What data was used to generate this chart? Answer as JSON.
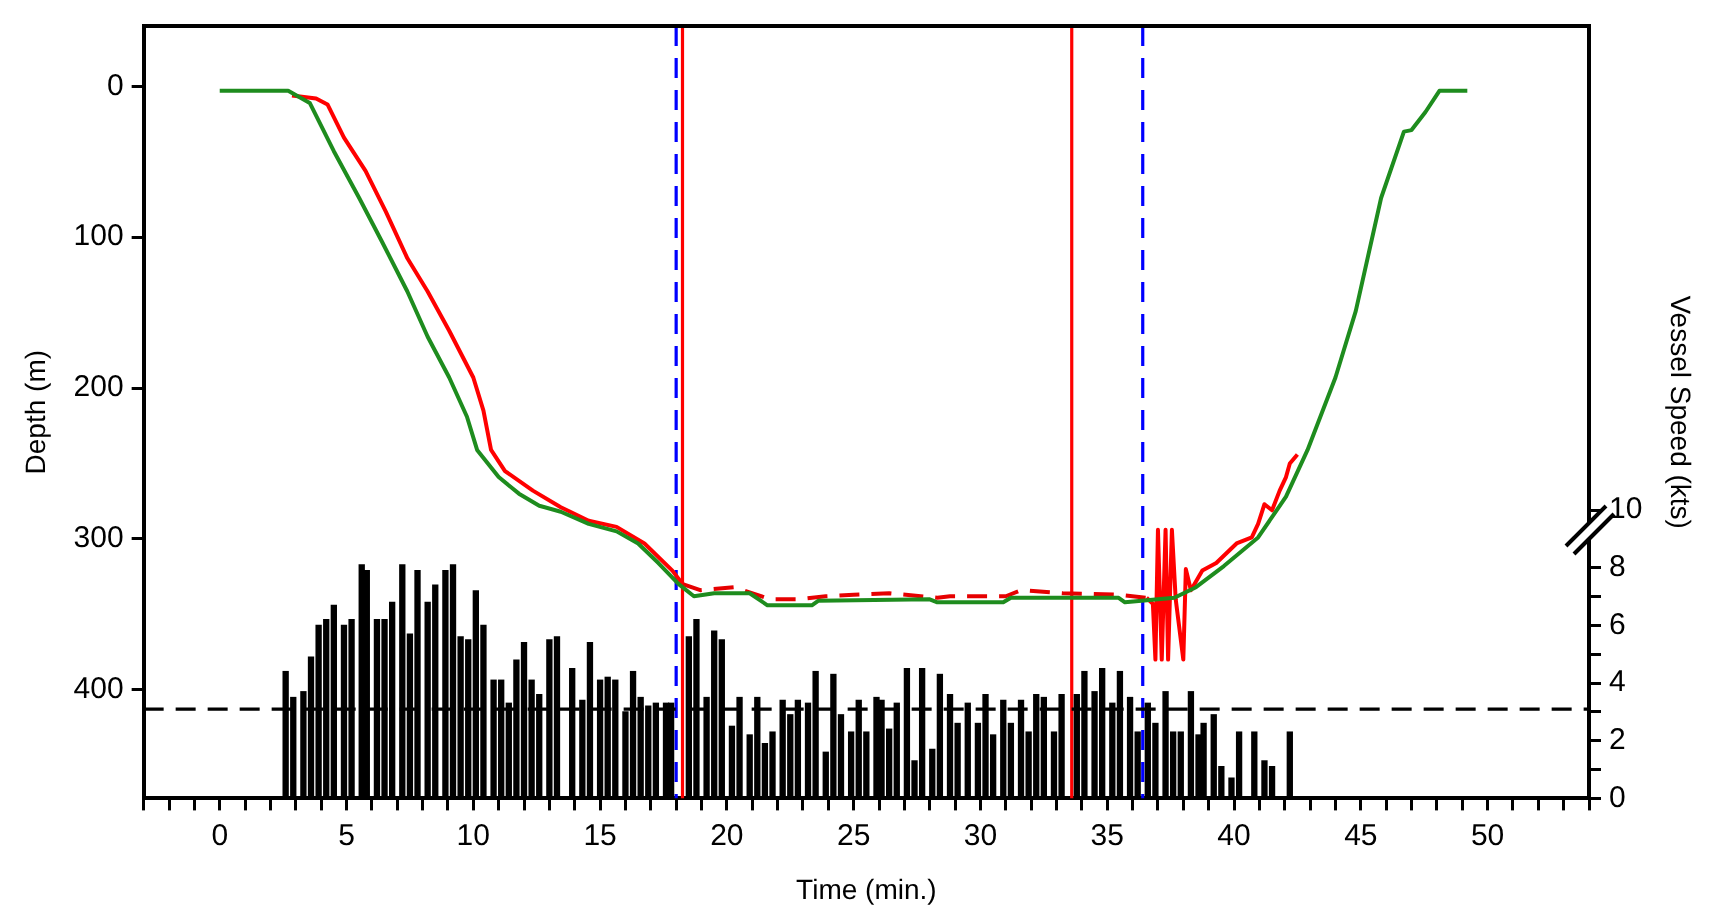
{
  "chart_data": {
    "type": "line",
    "xlabel": "Time (min.)",
    "ylabel": "Depth (m)",
    "y2label": "Vessel Speed (kts)",
    "xlim": [
      -3,
      54
    ],
    "ylim": [
      472,
      -40
    ],
    "y2lim": [
      0,
      26.8
    ],
    "xticks": [
      {
        "value": -3,
        "label": null
      },
      {
        "value": -2,
        "label": null
      },
      {
        "value": -1,
        "label": null
      },
      0,
      {
        "value": 1,
        "label": null
      },
      {
        "value": 2,
        "label": null
      },
      {
        "value": 3,
        "label": null
      },
      {
        "value": 4,
        "label": null
      },
      5,
      {
        "value": 6,
        "label": null
      },
      {
        "value": 7,
        "label": null
      },
      {
        "value": 8,
        "label": null
      },
      {
        "value": 9,
        "label": null
      },
      10,
      {
        "value": 11,
        "label": null
      },
      {
        "value": 12,
        "label": null
      },
      {
        "value": 13,
        "label": null
      },
      {
        "value": 14,
        "label": null
      },
      15,
      {
        "value": 16,
        "label": null
      },
      {
        "value": 17,
        "label": null
      },
      {
        "value": 18,
        "label": null
      },
      {
        "value": 19,
        "label": null
      },
      20,
      {
        "value": 21,
        "label": null
      },
      {
        "value": 22,
        "label": null
      },
      {
        "value": 23,
        "label": null
      },
      {
        "value": 24,
        "label": null
      },
      25,
      {
        "value": 26,
        "label": null
      },
      {
        "value": 27,
        "label": null
      },
      {
        "value": 28,
        "label": null
      },
      {
        "value": 29,
        "label": null
      },
      30,
      {
        "value": 31,
        "label": null
      },
      {
        "value": 32,
        "label": null
      },
      {
        "value": 33,
        "label": null
      },
      {
        "value": 34,
        "label": null
      },
      35,
      {
        "value": 36,
        "label": null
      },
      {
        "value": 37,
        "label": null
      },
      {
        "value": 38,
        "label": null
      },
      {
        "value": 39,
        "label": null
      },
      40,
      {
        "value": 41,
        "label": null
      },
      {
        "value": 42,
        "label": null
      },
      {
        "value": 43,
        "label": null
      },
      {
        "value": 44,
        "label": null
      },
      45,
      {
        "value": 46,
        "label": null
      },
      {
        "value": 47,
        "label": null
      },
      {
        "value": 48,
        "label": null
      },
      {
        "value": 49,
        "label": null
      },
      50,
      {
        "value": 51,
        "label": null
      },
      {
        "value": 52,
        "label": null
      },
      {
        "value": 53,
        "label": null
      },
      {
        "value": 54,
        "label": null
      }
    ],
    "yticks": [
      0,
      100,
      200,
      300,
      400
    ],
    "y2ticks": [
      0,
      {
        "value": 1,
        "label": null
      },
      2,
      {
        "value": 3,
        "label": null
      },
      4,
      {
        "value": 5,
        "label": null
      },
      6,
      {
        "value": 7,
        "label": null
      },
      8,
      10
    ],
    "grid": false,
    "legend": false,
    "marker": "none",
    "series": [
      {
        "type": "bar",
        "axis": "y2",
        "color": "#000000",
        "x": [
          2.6,
          2.9,
          3.3,
          3.6,
          3.9,
          4.2,
          4.5,
          4.9,
          5.2,
          5.6,
          5.8,
          6.2,
          6.5,
          6.8,
          7.2,
          7.5,
          7.8,
          8.2,
          8.5,
          8.9,
          9.2,
          9.5,
          9.8,
          10.1,
          10.4,
          10.8,
          11.1,
          11.4,
          11.7,
          12.0,
          12.3,
          12.6,
          13.0,
          13.3,
          13.9,
          14.3,
          14.6,
          15.0,
          15.3,
          15.6,
          16.0,
          16.3,
          16.6,
          16.9,
          17.2,
          17.6,
          17.8,
          18.5,
          18.8,
          19.2,
          19.5,
          19.8,
          20.2,
          20.5,
          20.9,
          21.2,
          21.5,
          21.8,
          22.2,
          22.5,
          22.8,
          23.2,
          23.5,
          23.9,
          24.2,
          24.5,
          24.9,
          25.2,
          25.5,
          25.9,
          26.1,
          26.4,
          26.7,
          27.1,
          27.4,
          27.7,
          28.1,
          28.4,
          28.8,
          29.1,
          29.5,
          29.9,
          30.2,
          30.5,
          30.9,
          31.2,
          31.6,
          31.9,
          32.2,
          32.5,
          32.9,
          33.2,
          33.8,
          34.1,
          34.5,
          34.8,
          35.2,
          35.5,
          35.9,
          36.2,
          36.6,
          36.9,
          37.3,
          37.6,
          37.9,
          38.3,
          38.6,
          38.8,
          39.2,
          39.5,
          39.9,
          40.2,
          40.8,
          41.2,
          41.5,
          42.2
        ],
        "values": [
          4.4,
          3.5,
          3.7,
          4.9,
          6.0,
          6.2,
          6.7,
          6.0,
          6.2,
          8.1,
          7.9,
          6.2,
          6.2,
          6.8,
          8.1,
          5.7,
          7.9,
          6.8,
          7.4,
          7.9,
          8.1,
          5.6,
          5.5,
          7.2,
          6.0,
          4.1,
          4.1,
          3.3,
          4.8,
          5.4,
          4.1,
          3.6,
          5.5,
          5.6,
          4.5,
          3.4,
          5.4,
          4.1,
          4.2,
          4.1,
          3.0,
          4.4,
          3.5,
          3.2,
          3.3,
          3.3,
          3.3,
          5.6,
          6.2,
          3.5,
          5.8,
          5.5,
          2.5,
          3.5,
          2.2,
          3.5,
          1.9,
          2.3,
          3.4,
          2.9,
          3.4,
          3.3,
          4.4,
          1.6,
          4.3,
          2.9,
          2.3,
          3.4,
          2.3,
          3.5,
          3.4,
          2.4,
          3.3,
          4.5,
          1.3,
          4.5,
          1.7,
          4.3,
          3.6,
          2.6,
          3.3,
          2.6,
          3.6,
          2.2,
          3.4,
          2.6,
          3.4,
          2.3,
          3.6,
          3.5,
          2.3,
          3.6,
          3.6,
          4.4,
          3.7,
          4.5,
          3.3,
          4.4,
          3.5,
          2.3,
          3.3,
          2.6,
          3.7,
          2.3,
          2.3,
          3.7,
          2.2,
          2.6,
          2.9,
          1.1,
          0.7,
          2.3,
          2.3,
          1.3,
          1.1,
          2.3
        ]
      },
      {
        "color": "#1e8c1e",
        "line_style": "solid",
        "x": [
          0,
          2.7,
          3.55,
          4.5,
          5.5,
          6.4,
          7.4,
          8.2,
          9.05,
          9.75,
          10.15,
          11.0,
          11.8,
          12.6,
          13.45,
          14.55,
          15.65,
          16.5,
          17.3,
          18.1,
          18.7,
          19.5,
          20.9,
          21.6,
          23.35,
          23.6,
          28.0,
          28.3,
          30.9,
          31.2,
          35.45,
          35.7,
          37.65,
          38.5,
          39.6,
          40.95,
          42.05,
          42.9,
          44.0,
          44.8,
          45.8,
          46.7,
          47.0,
          47.55,
          48.1,
          49.2
        ],
        "values": [
          3,
          3,
          11,
          43,
          74,
          103,
          136,
          166,
          193,
          219,
          241,
          259,
          270,
          278,
          282,
          290,
          295,
          303,
          316,
          330,
          338,
          336,
          336,
          344,
          344,
          341,
          340,
          342,
          342,
          339,
          339,
          342,
          339,
          332,
          318,
          299,
          272,
          241,
          193,
          149,
          74,
          30,
          29,
          17,
          3,
          3
        ]
      },
      {
        "color": "#ff0000",
        "line_style": "solid",
        "x": [
          2.85,
          3.8,
          4.25,
          4.9,
          5.75,
          6.55,
          7.4,
          8.2,
          9.05,
          10.0,
          10.4,
          10.7,
          11.25,
          12.35,
          13.45,
          14.55,
          15.65,
          16.75,
          17.85,
          18.26,
          27.0,
          36.55,
          36.8,
          36.9,
          37.0,
          37.15,
          37.3,
          37.4,
          37.55,
          37.7,
          38.0,
          38.1,
          38.3,
          38.75,
          39.3,
          40.1,
          40.7,
          40.95,
          41.2,
          41.5,
          41.8,
          42.05,
          42.2,
          42.5
        ],
        "values": [
          6,
          8,
          12,
          34,
          56,
          83,
          114,
          136,
          162,
          193,
          215,
          241,
          255,
          268,
          279,
          288,
          292,
          303,
          321,
          330,
          null,
          339,
          343,
          380,
          294,
          380,
          294,
          380,
          294,
          340,
          380,
          320,
          334,
          321,
          316,
          303,
          299,
          290,
          277,
          281,
          268,
          259,
          250,
          244
        ]
      },
      {
        "color": "#e60000",
        "line_style": "dashed",
        "x": [
          18.26,
          18.95,
          20.3,
          21.7,
          22.8,
          23.9,
          25.0,
          26.4,
          28.3,
          28.8,
          31.0,
          31.6,
          33.25,
          35.45,
          36.55
        ],
        "values": [
          330,
          334,
          332,
          340,
          340,
          338,
          337,
          336,
          339,
          338,
          338,
          334,
          336,
          337,
          339
        ]
      }
    ],
    "ref_lines": [
      {
        "axis": "x",
        "value": 18.0,
        "color": "#0000ff",
        "line_style": "dashed"
      },
      {
        "axis": "x",
        "value": 18.25,
        "color": "#ff0000",
        "line_style": "solid"
      },
      {
        "axis": "x",
        "value": 33.6,
        "color": "#ff0000",
        "line_style": "solid"
      },
      {
        "axis": "x",
        "value": 36.4,
        "color": "#0000ff",
        "line_style": "dashed"
      },
      {
        "axis": "y2",
        "value": 3.1,
        "color": "#000000",
        "line_style": "dashed"
      }
    ]
  }
}
